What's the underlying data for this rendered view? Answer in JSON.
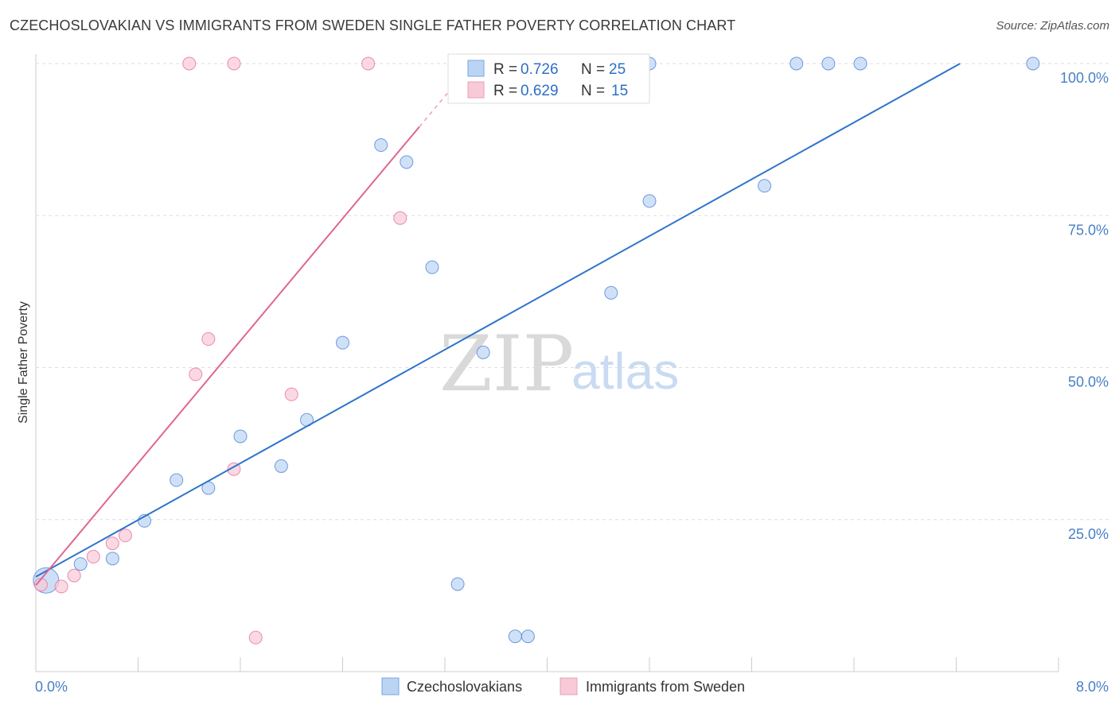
{
  "title": "CZECHOSLOVAKIAN VS IMMIGRANTS FROM SWEDEN SINGLE FATHER POVERTY CORRELATION CHART",
  "source": "Source: ZipAtlas.com",
  "watermark": {
    "zip": "ZIP",
    "atlas": "atlas"
  },
  "chart_data": {
    "type": "scatter",
    "title": "CZECHOSLOVAKIAN VS IMMIGRANTS FROM SWEDEN SINGLE FATHER POVERTY CORRELATION CHART",
    "xlabel": "",
    "ylabel": "Single Father Poverty",
    "xlim": [
      0,
      8
    ],
    "ylim": [
      0,
      100
    ],
    "x_tick_labels": [
      "0.0%",
      "8.0%"
    ],
    "y_tick_values": [
      25,
      50,
      75,
      100
    ],
    "y_tick_labels": [
      "25.0%",
      "50.0%",
      "75.0%",
      "100.0%"
    ],
    "grid": true,
    "series": [
      {
        "name": "Czechoslovakians",
        "color": "#4a86d8",
        "fill": "#bcd4f4",
        "R": "0.726",
        "N": "25",
        "points": [
          [
            0.08,
            15
          ],
          [
            0.35,
            17.7
          ],
          [
            0.6,
            18.6
          ],
          [
            0.85,
            24.8
          ],
          [
            1.1,
            31.5
          ],
          [
            1.35,
            30.2
          ],
          [
            1.6,
            38.7
          ],
          [
            1.92,
            33.8
          ],
          [
            2.12,
            41.4
          ],
          [
            2.4,
            54.1
          ],
          [
            2.7,
            86.6
          ],
          [
            2.9,
            83.8
          ],
          [
            3.1,
            66.5
          ],
          [
            3.3,
            14.4
          ],
          [
            3.5,
            52.5
          ],
          [
            3.75,
            5.8
          ],
          [
            3.85,
            5.8
          ],
          [
            4.5,
            62.3
          ],
          [
            4.8,
            77.4
          ],
          [
            4.8,
            100
          ],
          [
            5.7,
            79.9
          ],
          [
            5.95,
            100
          ],
          [
            6.2,
            100
          ],
          [
            6.45,
            100
          ],
          [
            7.8,
            100
          ]
        ],
        "trend": {
          "x": [
            0,
            7.23
          ],
          "y": [
            15.6,
            100
          ]
        }
      },
      {
        "name": "Immigrants from Sweden",
        "color": "#e8729a",
        "fill": "#f8c9d7",
        "R": "0.629",
        "N": "15",
        "points": [
          [
            0.04,
            14.3
          ],
          [
            0.2,
            14
          ],
          [
            0.3,
            15.8
          ],
          [
            0.45,
            18.9
          ],
          [
            0.6,
            21.1
          ],
          [
            0.7,
            22.4
          ],
          [
            1.2,
            100
          ],
          [
            1.25,
            48.9
          ],
          [
            1.35,
            54.7
          ],
          [
            1.55,
            100
          ],
          [
            1.55,
            33.3
          ],
          [
            1.72,
            5.6
          ],
          [
            2.0,
            45.6
          ],
          [
            2.6,
            100
          ],
          [
            2.85,
            74.6
          ]
        ],
        "trend": {
          "x": [
            0,
            3.0
          ],
          "y": [
            14.2,
            89.6
          ]
        },
        "trend_dashed": {
          "x": [
            3.0,
            3.35
          ],
          "y": [
            89.6,
            98.4
          ]
        }
      }
    ]
  },
  "legend": {
    "r_label": "R =",
    "n_label": "N =",
    "rows": [
      {
        "r": "0.726",
        "n": "25"
      },
      {
        "r": "0.629",
        "n": "15"
      }
    ]
  },
  "bottom_legend": [
    "Czechoslovakians",
    "Immigrants from Sweden"
  ]
}
